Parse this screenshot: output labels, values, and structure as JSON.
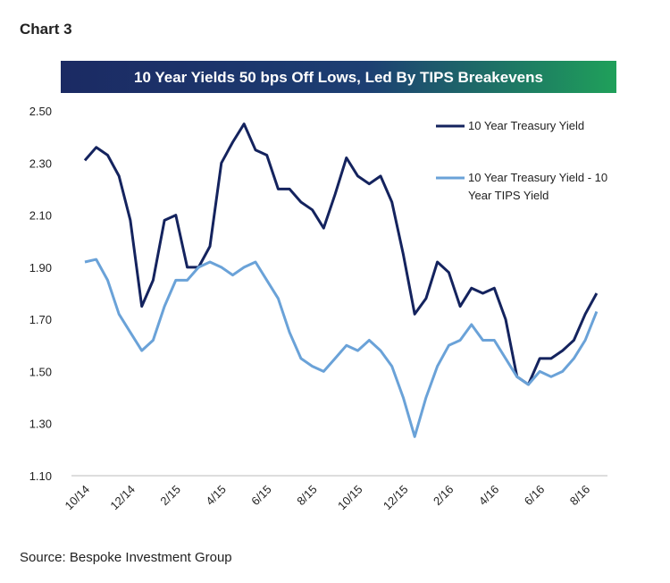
{
  "chart_data": {
    "type": "line",
    "heading": "Chart 3",
    "title": "10 Year Yields 50 bps Off Lows, Led By TIPS Breakevens",
    "source": "Source: Bespoke Investment Group",
    "categories": [
      "10/14",
      null,
      null,
      null,
      "12/14",
      null,
      null,
      null,
      "2/15",
      null,
      null,
      null,
      "4/15",
      null,
      null,
      null,
      "6/15",
      null,
      null,
      null,
      "8/15",
      null,
      null,
      null,
      "10/15",
      null,
      null,
      null,
      "12/15",
      null,
      null,
      null,
      "2/16",
      null,
      null,
      null,
      "4/16",
      null,
      null,
      null,
      "6/16",
      null,
      null,
      null,
      "8/16",
      null
    ],
    "series": [
      {
        "name": "10 Year Treasury Yield",
        "color": "#14235e",
        "values": [
          2.31,
          2.36,
          2.33,
          2.25,
          2.08,
          1.75,
          1.85,
          2.08,
          2.1,
          1.9,
          1.9,
          1.98,
          2.3,
          2.38,
          2.45,
          2.35,
          2.33,
          2.2,
          2.2,
          2.15,
          2.12,
          2.05,
          2.18,
          2.32,
          2.25,
          2.22,
          2.25,
          2.15,
          1.95,
          1.72,
          1.78,
          1.92,
          1.88,
          1.75,
          1.82,
          1.8,
          1.82,
          1.7,
          1.48,
          1.45,
          1.55,
          1.55,
          1.58,
          1.62,
          1.72,
          1.8
        ]
      },
      {
        "name": "10 Year Treasury Yield - 10 Year TIPS Yield",
        "color": "#6aa2d8",
        "values": [
          1.92,
          1.93,
          1.85,
          1.72,
          1.65,
          1.58,
          1.62,
          1.75,
          1.85,
          1.85,
          1.9,
          1.92,
          1.9,
          1.87,
          1.9,
          1.92,
          1.85,
          1.78,
          1.65,
          1.55,
          1.52,
          1.5,
          1.55,
          1.6,
          1.58,
          1.62,
          1.58,
          1.52,
          1.4,
          1.25,
          1.4,
          1.52,
          1.6,
          1.62,
          1.68,
          1.62,
          1.62,
          1.55,
          1.48,
          1.45,
          1.5,
          1.48,
          1.5,
          1.55,
          1.62,
          1.73
        ]
      }
    ],
    "ylim": [
      1.1,
      2.5
    ],
    "yticks": [
      {
        "value": 1.1,
        "label": "1.10"
      },
      {
        "value": 1.3,
        "label": "1.30"
      },
      {
        "value": 1.5,
        "label": "1.50"
      },
      {
        "value": 1.7,
        "label": "1.70"
      },
      {
        "value": 1.9,
        "label": "1.90"
      },
      {
        "value": 2.1,
        "label": "2.10"
      },
      {
        "value": 2.3,
        "label": "2.30"
      },
      {
        "value": 2.5,
        "label": "2.50"
      }
    ],
    "grid": false
  }
}
